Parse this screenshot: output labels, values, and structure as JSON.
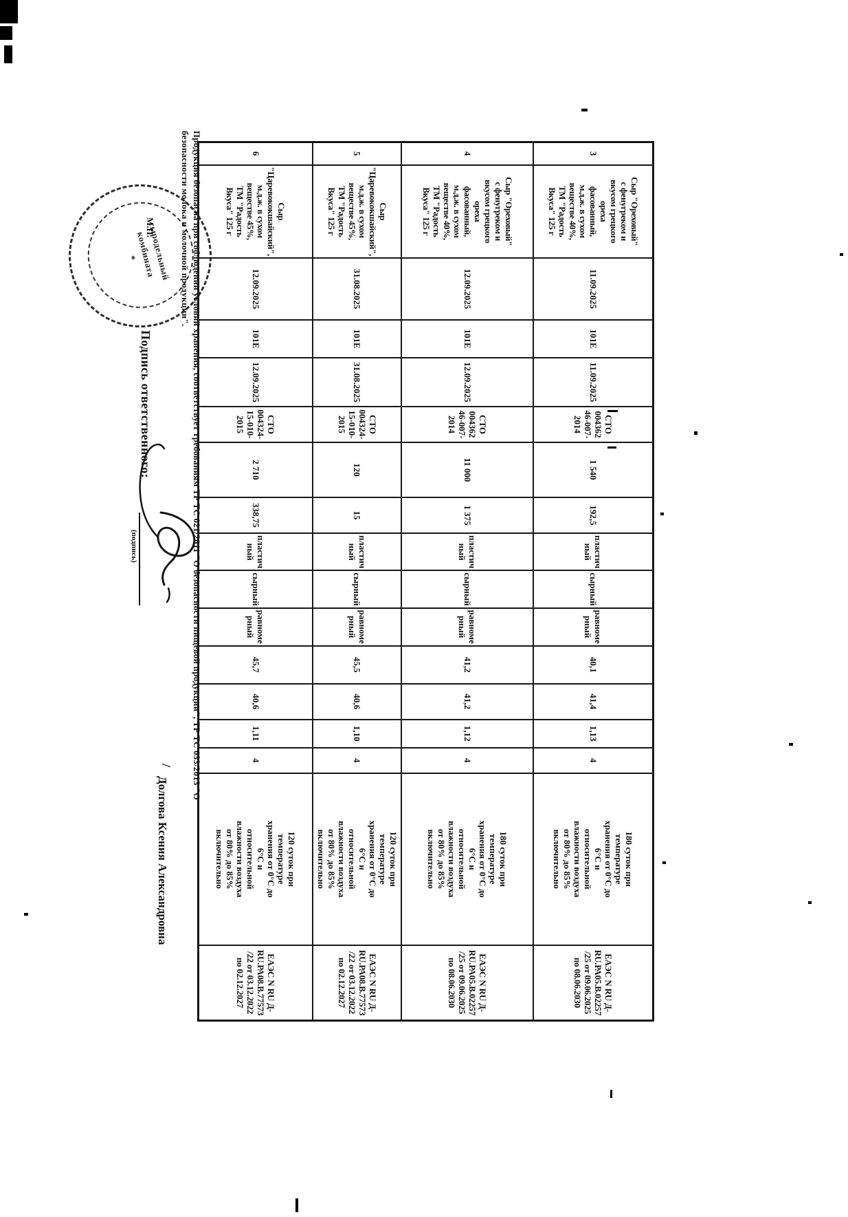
{
  "colors": {
    "ink": "#101010",
    "paper": "#ffffff"
  },
  "table": {
    "rows": [
      {
        "num": "3",
        "product": [
          "Сыр \"Ореховый\"",
          "с фенугреком и",
          "вкусом грецкого",
          "ореха",
          "фасованный,",
          "м.д.ж. в сухом",
          "веществе 40%,",
          "ТМ \"Радость",
          "Вкуса\" 125 г"
        ],
        "made_date": "11.09.2025",
        "batch": "101Е",
        "pack_date": "11.09.2025",
        "standard": [
          "СТО",
          "004362",
          "46-007-",
          "2014"
        ],
        "places": "1 540",
        "net_mass": "192,5",
        "consistency": [
          "пластич",
          "ный"
        ],
        "taste": [
          "сырный"
        ],
        "color": [
          "равноме",
          "рный"
        ],
        "fat": "40,1",
        "moisture": "41,4",
        "salt": "1,13",
        "score": "4",
        "storage": [
          "180 суток при",
          "температуре",
          "хранения от 0°С до",
          "6°С и",
          "относительной",
          "влажности воздуха",
          "от 80% до 85%",
          "включительно"
        ],
        "declaration": [
          "ЕАЭС N RU Д-",
          "RU.РА05.В.02257",
          "/25 от 09.06.2025",
          "по 08.06.2030"
        ]
      },
      {
        "num": "4",
        "product": [
          "Сыр \"Ореховый\"",
          "с фенугреком и",
          "вкусом грецкого",
          "ореха",
          "фасованный,",
          "м.д.ж. в сухом",
          "веществе 40%,",
          "ТМ \"Радость",
          "Вкуса\" 125 г"
        ],
        "made_date": "12.09.2025",
        "batch": "101Е",
        "pack_date": "12.09.2025",
        "standard": [
          "СТО",
          "004362",
          "46-007-",
          "2014"
        ],
        "places": "11 000",
        "net_mass": "1 375",
        "consistency": [
          "пластич",
          "ный"
        ],
        "taste": [
          "сырный"
        ],
        "color": [
          "равноме",
          "рный"
        ],
        "fat": "41,2",
        "moisture": "41,2",
        "salt": "1,12",
        "score": "4",
        "storage": [
          "180 суток при",
          "температуре",
          "хранения от 0°С до",
          "6°С и",
          "относительной",
          "влажности воздуха",
          "от 80% до 85%",
          "включительно"
        ],
        "declaration": [
          "ЕАЭС N RU Д-",
          "RU.РА05.В.02257",
          "/25 от 09.06.2025",
          "по 08.06.2030"
        ]
      },
      {
        "num": "5",
        "product": [
          "Сыр",
          "\"Царевококшайский\",",
          "м.д.ж. в сухом",
          "веществе 45%,",
          "ТМ \"Радость",
          "Вкуса\" 125 г"
        ],
        "made_date": "31.08.2025",
        "batch": "101Е",
        "pack_date": "31.08.2025",
        "standard": [
          "СТО",
          "004324-",
          "15-010-",
          "2015"
        ],
        "places": "120",
        "net_mass": "15",
        "consistency": [
          "пластич",
          "ный"
        ],
        "taste": [
          "сырный"
        ],
        "color": [
          "равноме",
          "рный"
        ],
        "fat": "45,5",
        "moisture": "40,6",
        "salt": "1,10",
        "score": "4",
        "storage": [
          "120 суток при",
          "температуре",
          "хранения от 0°С до",
          "6°С и",
          "относительной",
          "влажности воздуха",
          "от 80% до 85%",
          "включительно"
        ],
        "declaration": [
          "ЕАЭС N RU Д-",
          "RU.РА08.В.77573",
          "/22 от 03.12.2022",
          "по 02.12.2027"
        ]
      },
      {
        "num": "6",
        "product": [
          "Сыр",
          "\"Царевококшайский\",",
          "м.д.ж. в сухом",
          "веществе 45%,",
          "ТМ \"Радость",
          "Вкуса\" 125 г"
        ],
        "made_date": "12.09.2025",
        "batch": "101Е",
        "pack_date": "12.09.2025",
        "standard": [
          "СТО",
          "004324-",
          "15-010-",
          "2015"
        ],
        "places": "2 710",
        "net_mass": "338,75",
        "consistency": [
          "пластич",
          "ный"
        ],
        "taste": [
          "сырный"
        ],
        "color": [
          "равноме",
          "рный"
        ],
        "fat": "45,7",
        "moisture": "40,6",
        "salt": "1,11",
        "score": "4",
        "storage": [
          "120 суток при",
          "температуре",
          "хранения от 0°С до",
          "6°С и",
          "относительной",
          "влажности воздуха",
          "от 80% до 85%",
          "включительно"
        ],
        "declaration": [
          "ЕАЭС N RU Д-",
          "RU.РА08.В.77573",
          "/22 от 03.12.2022",
          "по 02.12.2027"
        ]
      }
    ]
  },
  "footer": {
    "compliance_line1": "Продукция безопасна при соблюдении условий хранения, соответствует требованиям ТР ТС 021/2011 \"О безопасности пищевой продукции\", ТР ТС 033/2013 \"О",
    "compliance_line2": "безопасности молока и молочной продукции\".",
    "sign_label": "Подпись ответственного:",
    "sign_caption": "(подпись)",
    "sign_slash": "/",
    "sign_name": "Долгова Ксения Александровна",
    "mp_label": "М.П."
  },
  "stamp": {
    "line1": "сыродельный",
    "line2": "комбината",
    "star": "*"
  }
}
